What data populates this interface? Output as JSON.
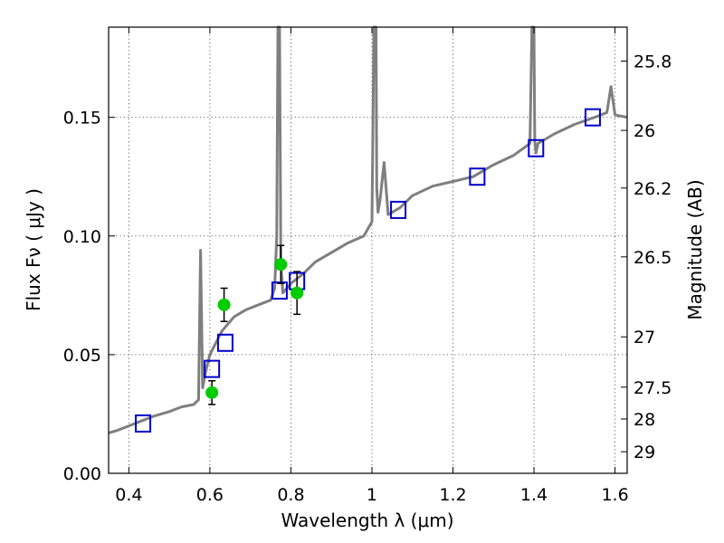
{
  "chart_data": {
    "type": "line",
    "title": "",
    "xlabel": "Wavelength  λ (μm)",
    "ylabel": "Flux  Fν  ( μJy )",
    "ylabel_right": "Magnitude (AB)",
    "xlim": [
      0.35,
      1.63
    ],
    "ylim": [
      0.0,
      0.188
    ],
    "grid": true,
    "x_ticks": [
      0.4,
      0.6,
      0.8,
      1.0,
      1.2,
      1.4,
      1.6
    ],
    "x_tick_labels": [
      "0.4",
      "0.6",
      "0.8",
      "1",
      "1.2",
      "1.4",
      "1.6"
    ],
    "y_ticks": [
      0.0,
      0.05,
      0.1,
      0.15
    ],
    "y_tick_labels": [
      "0.00",
      "0.05",
      "0.10",
      "0.15"
    ],
    "right_ticks": [
      {
        "label": "25.8",
        "flux": 0.1737
      },
      {
        "label": "26",
        "flux": 0.1445
      },
      {
        "label": "26.2",
        "flux": 0.1202
      },
      {
        "label": "26.5",
        "flux": 0.0912
      },
      {
        "label": "27",
        "flux": 0.0575
      },
      {
        "label": "27.5",
        "flux": 0.0363
      },
      {
        "label": "28",
        "flux": 0.0229
      },
      {
        "label": "29",
        "flux": 0.0091
      }
    ],
    "series": [
      {
        "type": "line",
        "color": "#7f7f7f",
        "x": [
          0.35,
          0.37,
          0.4,
          0.43,
          0.46,
          0.5,
          0.53,
          0.56,
          0.572,
          0.577,
          0.582,
          0.59,
          0.6,
          0.63,
          0.66,
          0.69,
          0.72,
          0.75,
          0.76,
          0.765,
          0.768,
          0.77,
          0.772,
          0.775,
          0.78,
          0.8,
          0.83,
          0.86,
          0.9,
          0.94,
          0.98,
          1.0,
          1.005,
          1.008,
          1.01,
          1.012,
          1.015,
          1.02,
          1.03,
          1.04,
          1.07,
          1.1,
          1.15,
          1.2,
          1.25,
          1.3,
          1.35,
          1.39,
          1.395,
          1.398,
          1.4,
          1.402,
          1.405,
          1.41,
          1.45,
          1.5,
          1.55,
          1.58,
          1.59,
          1.6,
          1.63
        ],
        "y": [
          0.017,
          0.018,
          0.02,
          0.022,
          0.024,
          0.026,
          0.028,
          0.029,
          0.031,
          0.094,
          0.036,
          0.043,
          0.05,
          0.06,
          0.066,
          0.069,
          0.071,
          0.073,
          0.078,
          0.1,
          0.188,
          0.188,
          0.188,
          0.09,
          0.076,
          0.08,
          0.084,
          0.089,
          0.093,
          0.097,
          0.1,
          0.106,
          0.188,
          0.188,
          0.188,
          0.12,
          0.11,
          0.115,
          0.131,
          0.109,
          0.112,
          0.117,
          0.121,
          0.123,
          0.125,
          0.13,
          0.134,
          0.139,
          0.188,
          0.188,
          0.188,
          0.14,
          0.135,
          0.139,
          0.143,
          0.147,
          0.15,
          0.152,
          0.163,
          0.151,
          0.15
        ]
      },
      {
        "type": "scatter",
        "marker": "square",
        "color": "#0000cc",
        "x": [
          0.435,
          0.605,
          0.638,
          0.772,
          0.815,
          1.065,
          1.26,
          1.405,
          1.545
        ],
        "y": [
          0.021,
          0.044,
          0.055,
          0.077,
          0.081,
          0.111,
          0.125,
          0.137,
          0.15
        ]
      },
      {
        "type": "scatter",
        "marker": "circle",
        "color": "#00cc00",
        "x": [
          0.605,
          0.635,
          0.775,
          0.815
        ],
        "y": [
          0.034,
          0.071,
          0.088,
          0.076
        ],
        "yerr": [
          0.005,
          0.007,
          0.008,
          0.009
        ]
      }
    ]
  }
}
